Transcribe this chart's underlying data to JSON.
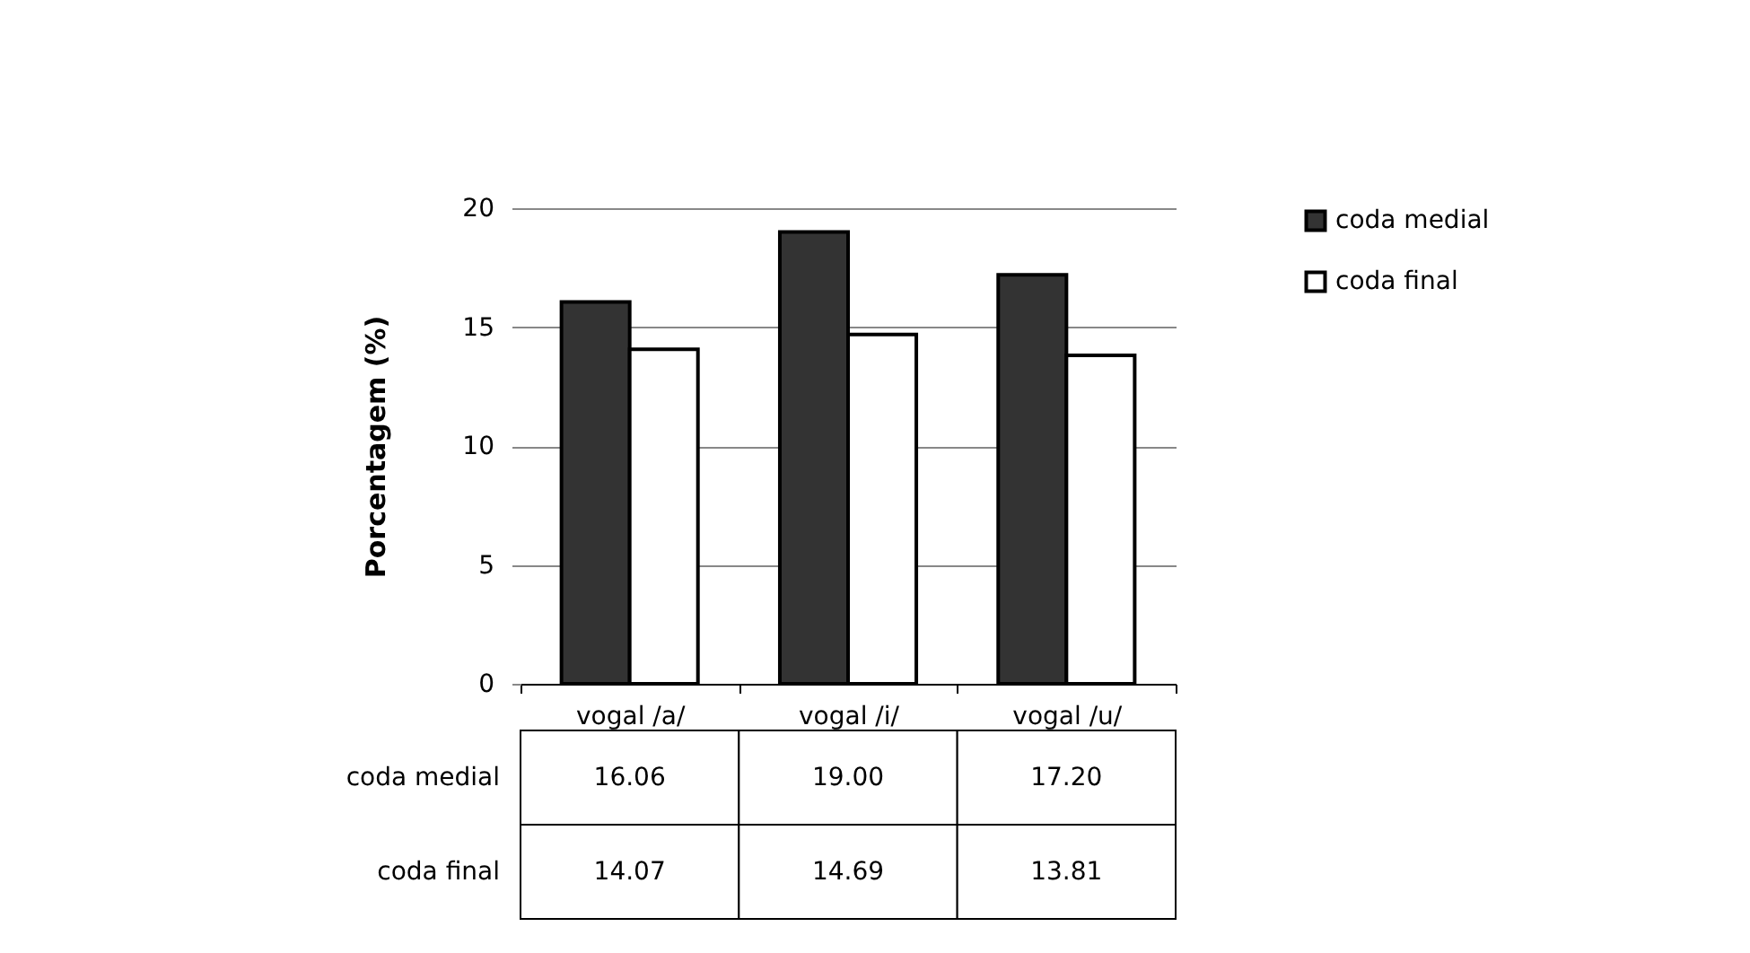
{
  "chart_data": {
    "type": "bar",
    "ylabel": "Porcentagem (%)",
    "categories": [
      "vogal /a/",
      "vogal /i/",
      "vogal /u/"
    ],
    "series": [
      {
        "name": "coda medial",
        "color": "#333333",
        "values": [
          16.06,
          19.0,
          17.2
        ],
        "value_labels": [
          "16.06",
          "19.00",
          "17.20"
        ]
      },
      {
        "name": "coda final",
        "color": "#ffffff",
        "values": [
          14.07,
          14.69,
          13.81
        ],
        "value_labels": [
          "14.07",
          "14.69",
          "13.81"
        ]
      }
    ],
    "ylim": [
      0,
      20
    ],
    "yticks": [
      0,
      5,
      10,
      15,
      20
    ],
    "grid": "y",
    "legend": "right"
  }
}
